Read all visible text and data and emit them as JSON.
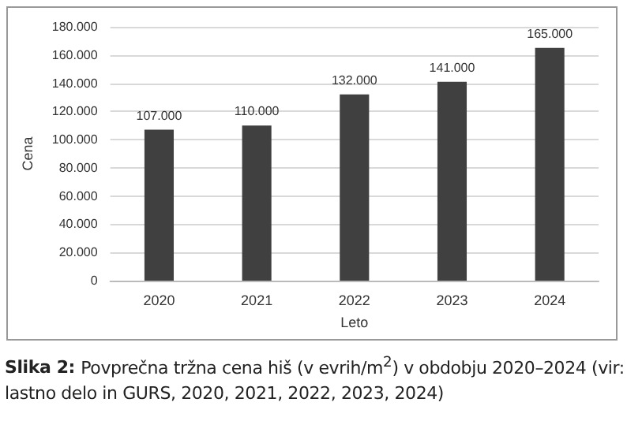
{
  "chart_data": {
    "type": "bar",
    "xlabel": "Leto",
    "ylabel": "Cena",
    "categories": [
      "2020",
      "2021",
      "2022",
      "2023",
      "2024"
    ],
    "values": [
      107000,
      110000,
      132000,
      141000,
      165000
    ],
    "value_labels": [
      "107.000",
      "110.000",
      "132.000",
      "141.000",
      "165.000"
    ],
    "color": "#404040",
    "ylim": [
      0,
      180000
    ],
    "yticks": [
      {
        "value": 0,
        "label": "0"
      },
      {
        "value": 20000,
        "label": "20.000"
      },
      {
        "value": 40000,
        "label": "40.000"
      },
      {
        "value": 60000,
        "label": "60.000"
      },
      {
        "value": 80000,
        "label": "80.000"
      },
      {
        "value": 100000,
        "label": "100.000"
      },
      {
        "value": 120000,
        "label": "120.000"
      },
      {
        "value": 140000,
        "label": "140.000"
      },
      {
        "value": 160000,
        "label": "160.000"
      },
      {
        "value": 180000,
        "label": "180.000"
      }
    ],
    "grid": "y",
    "annotations": [
      "Slika 2:",
      "Povprečna tržna cena hiš (v evrih/m$^{2}$) v obdobju 2020–2024 (vir: lastno delo in GURS, 2020, 2021, 2022, 2023, 2024)"
    ]
  }
}
